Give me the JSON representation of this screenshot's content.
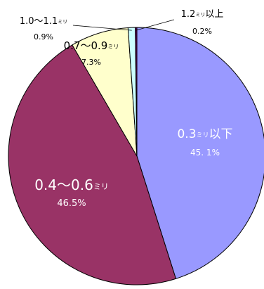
{
  "chart_data": {
    "type": "pie",
    "slices": [
      {
        "category": "0.3ミリ以下",
        "label_main": "0.3",
        "label_unit": "ミリ",
        "label_suffix": "以下",
        "value": 45.1,
        "value_label": "45. 1%",
        "color": "#9999ff"
      },
      {
        "category": "0.4〜0.6ミリ",
        "label_main": "0.4〜0.6",
        "label_unit": "ミリ",
        "label_suffix": "",
        "value": 46.5,
        "value_label": "46.5%",
        "color": "#993366"
      },
      {
        "category": "0.7〜0.9ミリ",
        "label_main": "0.7〜0.9",
        "label_unit": "ミリ",
        "label_suffix": "",
        "value": 7.3,
        "value_label": "7.3%",
        "color": "#ffffcc"
      },
      {
        "category": "1.0〜1.1ミリ",
        "label_main": "1.0〜1.1",
        "label_unit": "ミリ",
        "label_suffix": "",
        "value": 0.9,
        "value_label": "0.9%",
        "color": "#ccffff"
      },
      {
        "category": "1.2ミリ以上",
        "label_main": "1.2",
        "label_unit": "ミリ",
        "label_suffix": "以上",
        "value": 0.2,
        "value_label": "0.2%",
        "color": "#660066"
      }
    ],
    "start_angle_deg": 0,
    "direction": "clockwise",
    "legend": "none"
  }
}
